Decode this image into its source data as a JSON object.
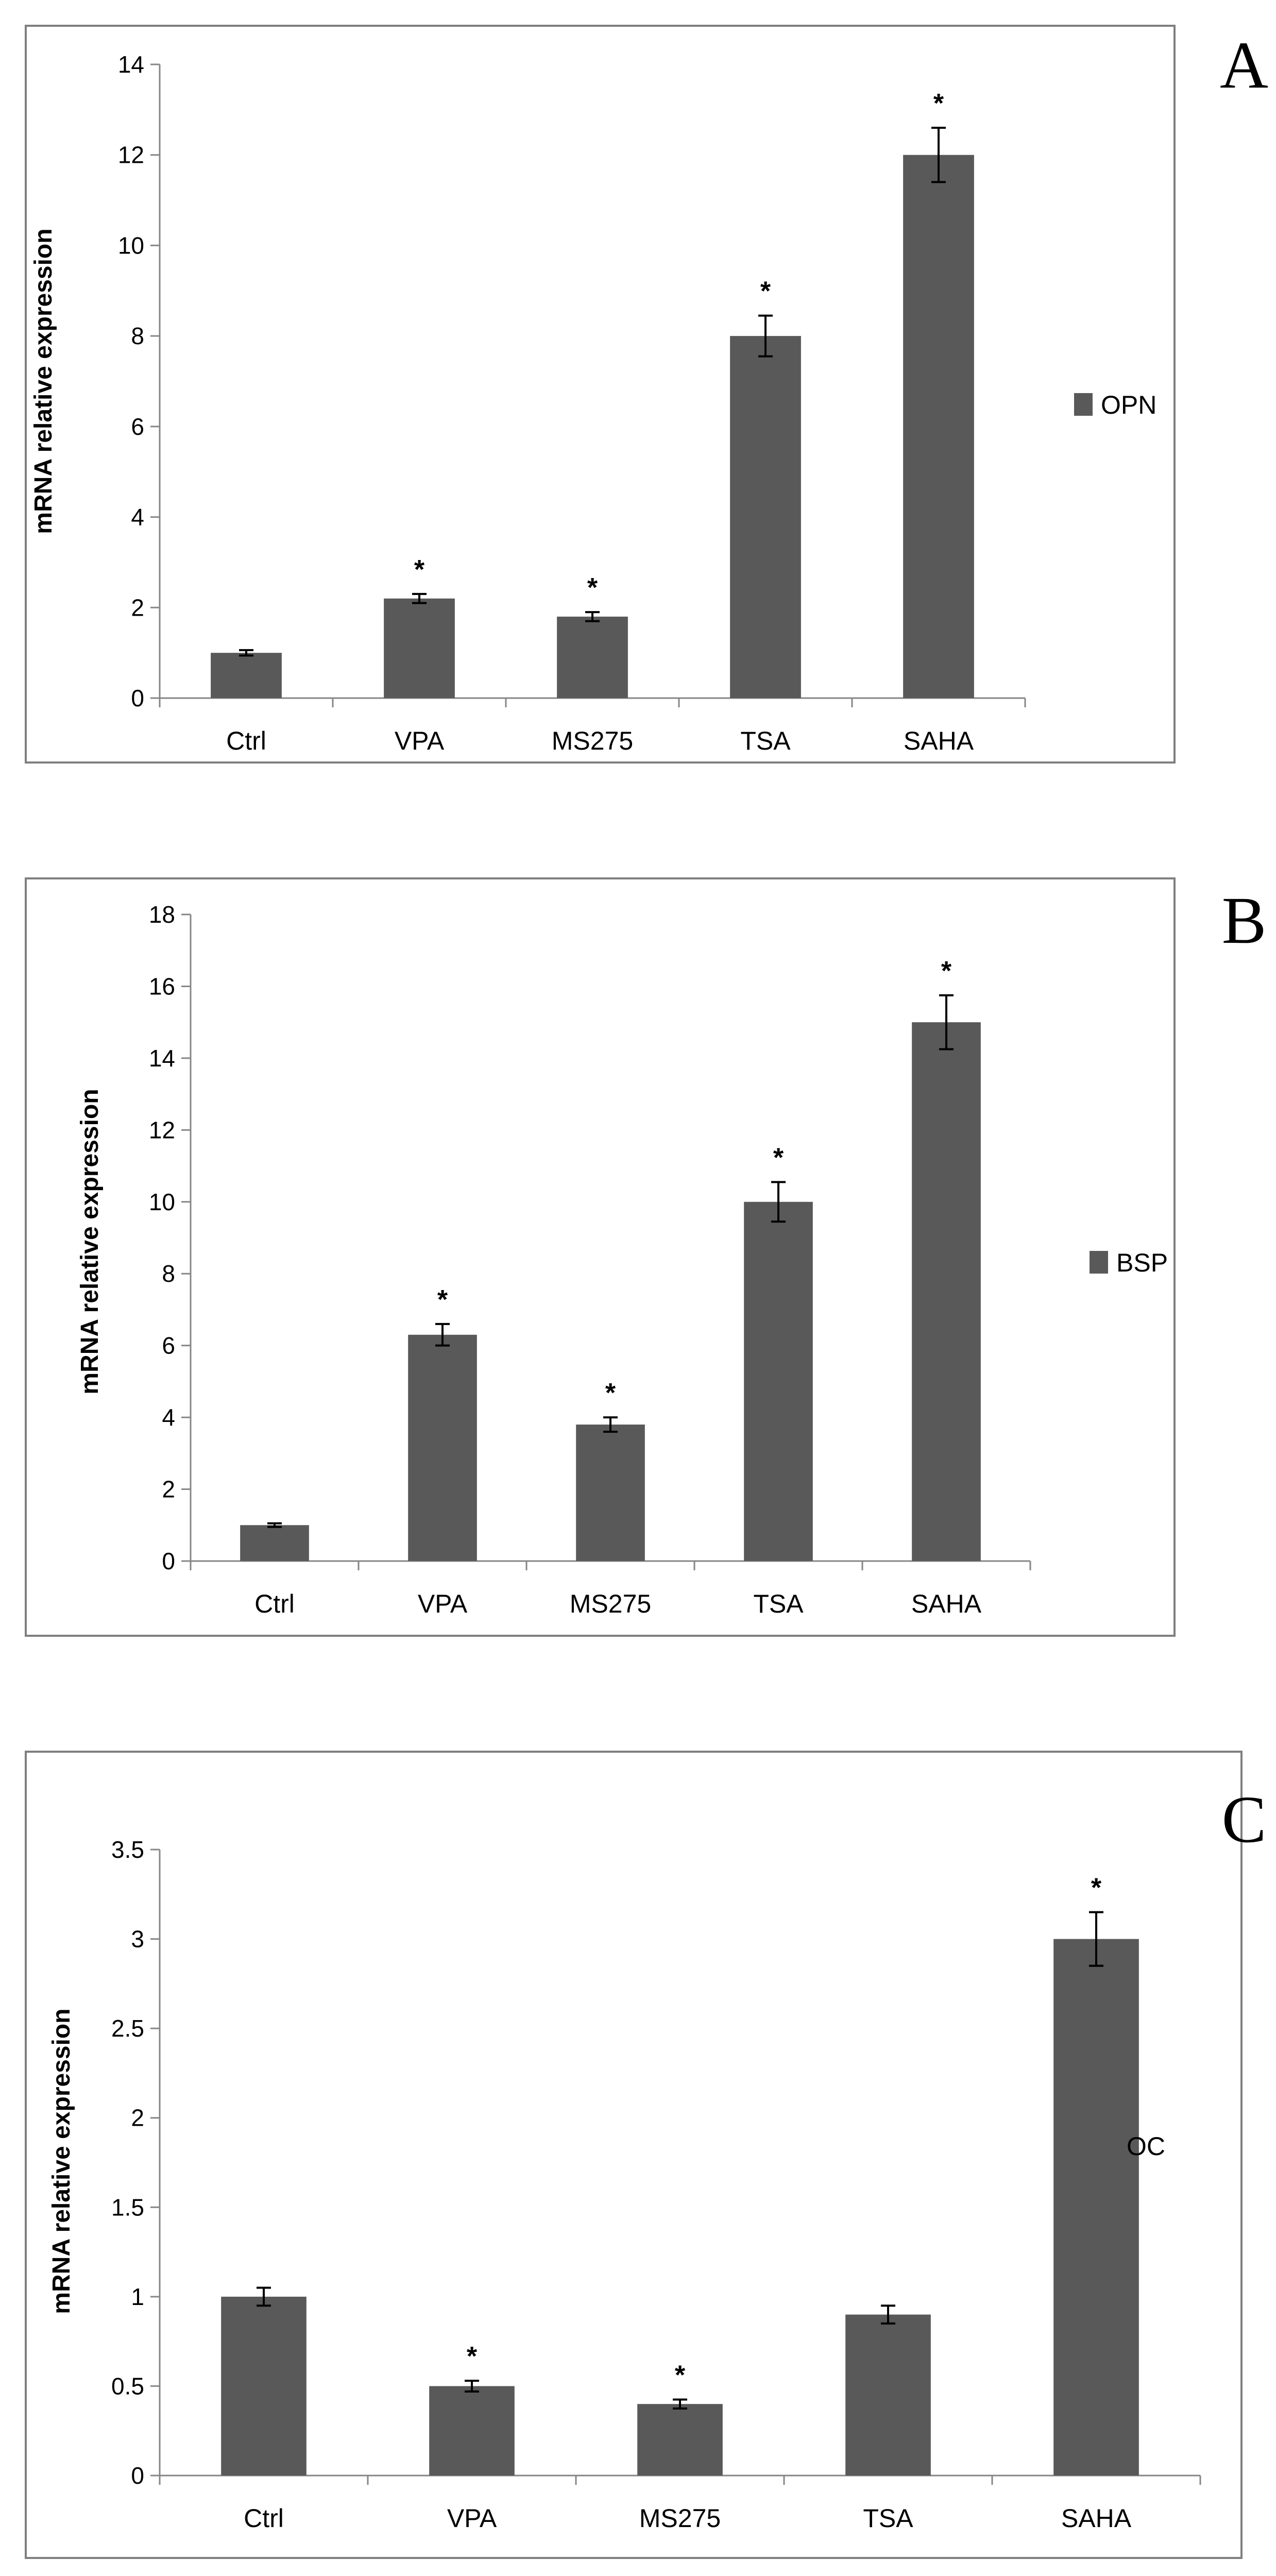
{
  "chart_data": [
    {
      "type": "bar",
      "panel": "A",
      "ylabel": "mRNA relative expression",
      "categories": [
        "Ctrl",
        "VPA",
        "MS275",
        "TSA",
        "SAHA"
      ],
      "series": [
        {
          "name": "OPN",
          "values": [
            1.0,
            2.2,
            1.8,
            8.0,
            12.0
          ],
          "errors": [
            0.06,
            0.1,
            0.1,
            0.45,
            0.6
          ]
        }
      ],
      "significance": [
        "",
        "*",
        "*",
        "*",
        "*"
      ],
      "ylim": [
        0,
        14
      ],
      "yticks": [
        0,
        2,
        4,
        6,
        8,
        10,
        12,
        14
      ],
      "ytick_labels": [
        "0",
        "2",
        "4",
        "6",
        "8",
        "10",
        "12",
        "14"
      ],
      "legend": "right",
      "grid": false,
      "colors": {
        "bar": "#595959"
      }
    },
    {
      "type": "bar",
      "panel": "B",
      "ylabel": "mRNA relative expression",
      "categories": [
        "Ctrl",
        "VPA",
        "MS275",
        "TSA",
        "SAHA"
      ],
      "series": [
        {
          "name": "BSP",
          "values": [
            1.0,
            6.3,
            3.8,
            10.0,
            15.0
          ],
          "errors": [
            0.05,
            0.3,
            0.2,
            0.55,
            0.75
          ]
        }
      ],
      "significance": [
        "",
        "*",
        "*",
        "*",
        "*"
      ],
      "ylim": [
        0,
        18
      ],
      "yticks": [
        0,
        2,
        4,
        6,
        8,
        10,
        12,
        14,
        16,
        18
      ],
      "ytick_labels": [
        "0",
        "2",
        "4",
        "6",
        "8",
        "10",
        "12",
        "14",
        "16",
        "18"
      ],
      "legend": "right",
      "grid": false,
      "colors": {
        "bar": "#595959"
      }
    },
    {
      "type": "bar",
      "panel": "C",
      "ylabel": "mRNA relative expression",
      "categories": [
        "Ctrl",
        "VPA",
        "MS275",
        "TSA",
        "SAHA"
      ],
      "series": [
        {
          "name": "OC",
          "values": [
            1.0,
            0.5,
            0.4,
            0.9,
            3.0
          ],
          "errors": [
            0.05,
            0.03,
            0.025,
            0.05,
            0.15
          ]
        }
      ],
      "significance": [
        "",
        "*",
        "*",
        "",
        "*"
      ],
      "ylim": [
        0,
        3.5
      ],
      "yticks": [
        0,
        0.5,
        1,
        1.5,
        2,
        2.5,
        3,
        3.5
      ],
      "ytick_labels": [
        "0",
        "0.5",
        "1",
        "1.5",
        "2",
        "2.5",
        "3",
        "3.5"
      ],
      "legend": "right",
      "grid": false,
      "colors": {
        "bar": "#595959"
      }
    }
  ]
}
